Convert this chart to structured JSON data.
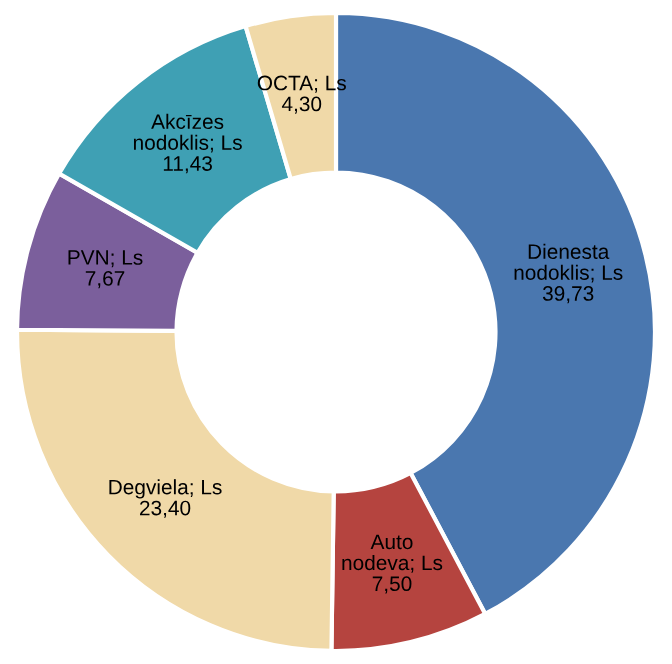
{
  "chart_data": {
    "type": "donut",
    "categories": [
      "Dienesta nodoklis",
      "Auto nodeva",
      "Degviela",
      "PVN",
      "Akcīzes nodoklis",
      "OCTA"
    ],
    "values": [
      39.73,
      7.5,
      23.4,
      7.67,
      11.43,
      4.3
    ],
    "value_labels": [
      "Ls 39,73",
      "Ls 7,50",
      "Ls 23,40",
      "Ls 7,67",
      "Ls 11,43",
      "Ls 4,30"
    ],
    "colors": [
      "#4a77af",
      "#b5443f",
      "#f0d9a8",
      "#7b5f9c",
      "#3fa0b4",
      "#f0d9a8"
    ],
    "legend": false
  }
}
